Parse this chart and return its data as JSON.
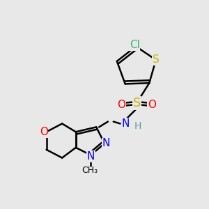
{
  "background_color": "#e8e8e8",
  "figure_size": [
    3.0,
    3.0
  ],
  "dpi": 100,
  "colors": {
    "bond": "black",
    "Cl": "#3cb371",
    "S": "#c8b400",
    "O": "#ff0000",
    "N": "#0000ff",
    "H": "#5f9ea0",
    "C": "black",
    "bg": "#e8e8e8"
  }
}
